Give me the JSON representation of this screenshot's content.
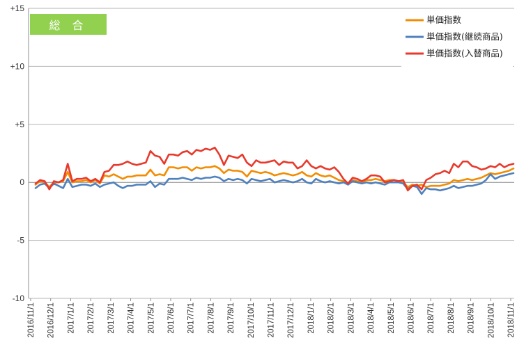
{
  "badge": {
    "label": "総 合",
    "color": "#92d050"
  },
  "chart_data": {
    "type": "line",
    "title": "",
    "xlabel": "",
    "ylabel": "",
    "ylim": [
      -10,
      15
    ],
    "y_ticks": [
      {
        "value": 15,
        "label": "+15"
      },
      {
        "value": 10,
        "label": "+10"
      },
      {
        "value": 5,
        "label": "+5"
      },
      {
        "value": 0,
        "label": "0"
      },
      {
        "value": -5,
        "label": "-5"
      },
      {
        "value": -10,
        "label": "-10"
      }
    ],
    "grid": "horizontal",
    "legend_position": "top-right",
    "x_tick_labels": [
      "2016/11/1",
      "2016/12/1",
      "2017/1/1",
      "2017/2/1",
      "2017/3/1",
      "2017/4/1",
      "2017/5/1",
      "2017/6/1",
      "2017/7/1",
      "2017/8/1",
      "2017/9/1",
      "2017/10/1",
      "2017/11/1",
      "2017/12/1",
      "2018/1/1",
      "2018/2/1",
      "2018/3/1",
      "2018/4/1",
      "2018/5/1",
      "2018/6/1",
      "2018/7/1",
      "2018/8/1",
      "2018/9/1",
      "2018/10/1",
      "2018/11/1"
    ],
    "x_unit": "weekly",
    "series": [
      {
        "name": "単価指数",
        "color": "#f28c00",
        "values": [
          -0.2,
          0.1,
          0.0,
          -0.4,
          0.0,
          0.0,
          0.1,
          0.9,
          0.0,
          0.1,
          0.1,
          0.2,
          0.0,
          0.2,
          -0.1,
          0.6,
          0.5,
          0.7,
          0.5,
          0.3,
          0.5,
          0.5,
          0.6,
          0.6,
          0.6,
          1.1,
          0.6,
          0.7,
          0.6,
          1.3,
          1.3,
          1.2,
          1.3,
          1.3,
          1.0,
          1.3,
          1.2,
          1.3,
          1.3,
          1.4,
          1.2,
          0.8,
          1.1,
          1.0,
          1.0,
          0.9,
          0.5,
          1.0,
          0.9,
          0.8,
          0.9,
          0.8,
          0.6,
          0.7,
          0.8,
          0.7,
          0.6,
          0.7,
          0.9,
          0.6,
          0.5,
          0.8,
          0.6,
          0.5,
          0.6,
          0.4,
          0.2,
          0.1,
          -0.1,
          0.2,
          0.1,
          0.0,
          0.2,
          0.2,
          0.3,
          0.2,
          0.1,
          0.2,
          0.2,
          0.1,
          0.0,
          -0.4,
          -0.2,
          -0.3,
          -0.2,
          -0.4,
          -0.3,
          -0.3,
          -0.3,
          -0.2,
          -0.1,
          0.2,
          0.1,
          0.2,
          0.3,
          0.2,
          0.3,
          0.4,
          0.6,
          0.8,
          0.7,
          0.8,
          0.9,
          1.0,
          1.2
        ]
      },
      {
        "name": "単価指数(継続商品)",
        "color": "#4f81bd",
        "values": [
          -0.5,
          -0.2,
          -0.1,
          -0.5,
          -0.1,
          -0.3,
          -0.5,
          0.3,
          -0.4,
          -0.3,
          -0.2,
          -0.2,
          -0.3,
          -0.1,
          -0.4,
          -0.2,
          -0.1,
          0.0,
          -0.3,
          -0.5,
          -0.3,
          -0.3,
          -0.2,
          -0.2,
          -0.2,
          0.1,
          -0.4,
          -0.1,
          -0.2,
          0.3,
          0.3,
          0.3,
          0.4,
          0.3,
          0.2,
          0.4,
          0.3,
          0.4,
          0.4,
          0.5,
          0.4,
          0.1,
          0.3,
          0.2,
          0.3,
          0.2,
          -0.1,
          0.3,
          0.2,
          0.1,
          0.2,
          0.3,
          0.0,
          0.1,
          0.2,
          0.1,
          0.0,
          0.1,
          0.3,
          0.0,
          -0.1,
          0.3,
          0.1,
          0.0,
          0.1,
          0.0,
          -0.1,
          0.0,
          -0.2,
          0.1,
          0.0,
          -0.1,
          0.0,
          -0.1,
          0.0,
          -0.1,
          -0.2,
          0.0,
          0.0,
          0.0,
          -0.1,
          -0.6,
          -0.3,
          -0.4,
          -1.0,
          -0.5,
          -0.6,
          -0.6,
          -0.7,
          -0.6,
          -0.5,
          -0.3,
          -0.5,
          -0.4,
          -0.3,
          -0.3,
          -0.2,
          -0.1,
          0.2,
          0.7,
          0.3,
          0.5,
          0.6,
          0.7,
          0.8
        ]
      },
      {
        "name": "単価指数(入替商品)",
        "color": "#e8392c",
        "values": [
          -0.1,
          0.2,
          0.1,
          -0.6,
          0.1,
          0.0,
          0.2,
          1.6,
          0.1,
          0.3,
          0.3,
          0.4,
          0.1,
          0.3,
          0.0,
          0.9,
          1.0,
          1.5,
          1.5,
          1.6,
          1.8,
          1.6,
          1.5,
          1.6,
          1.7,
          2.7,
          2.3,
          2.2,
          1.6,
          2.4,
          2.4,
          2.3,
          2.6,
          2.7,
          2.4,
          2.8,
          2.7,
          2.9,
          2.8,
          3.0,
          2.4,
          1.5,
          2.3,
          2.2,
          2.1,
          2.4,
          1.7,
          1.4,
          1.9,
          1.7,
          1.7,
          1.8,
          1.9,
          1.5,
          1.8,
          1.7,
          1.7,
          1.2,
          1.4,
          1.9,
          1.4,
          1.2,
          1.4,
          1.2,
          1.1,
          1.3,
          0.9,
          0.3,
          -0.1,
          0.4,
          0.3,
          0.1,
          0.3,
          0.6,
          0.6,
          0.5,
          0.0,
          0.1,
          0.2,
          0.1,
          0.2,
          -0.7,
          -0.3,
          -0.2,
          -0.6,
          0.2,
          0.4,
          0.7,
          0.8,
          1.0,
          0.8,
          1.6,
          1.3,
          1.8,
          1.8,
          1.4,
          1.3,
          1.1,
          1.2,
          1.4,
          1.3,
          1.6,
          1.3,
          1.5,
          1.6
        ]
      }
    ]
  }
}
